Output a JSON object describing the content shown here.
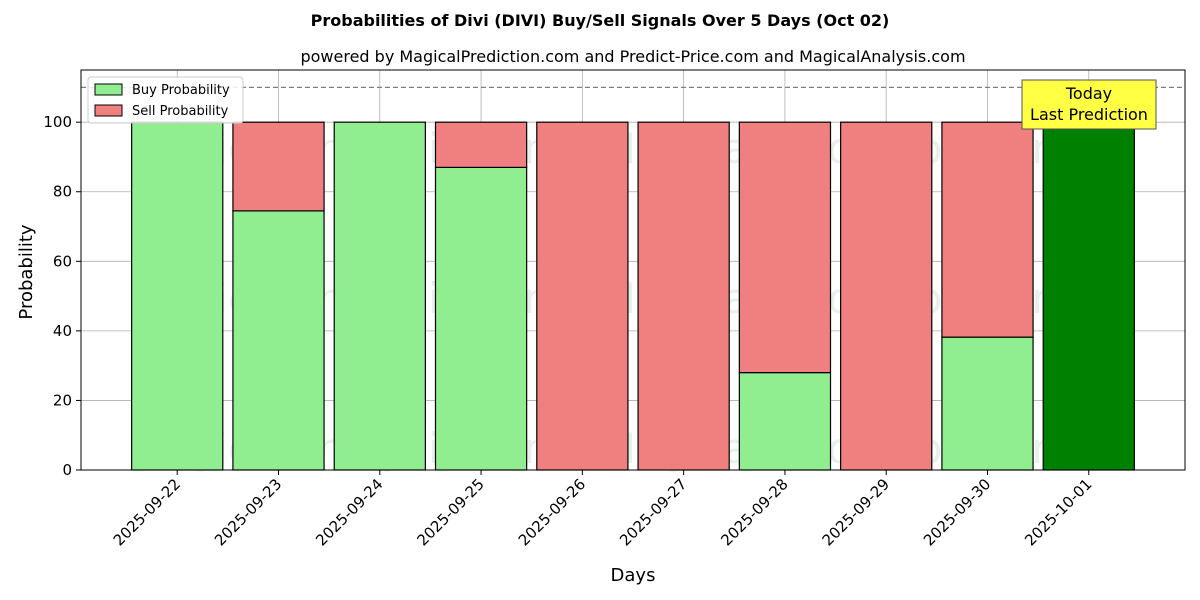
{
  "chart_data": {
    "type": "bar",
    "stacked": true,
    "title": "Probabilities of Divi (DIVI) Buy/Sell Signals Over 5 Days (Oct 02)",
    "subtitle": "powered by MagicalPrediction.com and Predict-Price.com and MagicalAnalysis.com",
    "xlabel": "Days",
    "ylabel": "Probability",
    "ylim": [
      0,
      115
    ],
    "yticks": [
      0,
      20,
      40,
      60,
      80,
      100
    ],
    "reference_line": 110,
    "grid": true,
    "legend_position": "top-left",
    "categories": [
      "2025-09-22",
      "2025-09-23",
      "2025-09-24",
      "2025-09-25",
      "2025-09-26",
      "2025-09-27",
      "2025-09-28",
      "2025-09-29",
      "2025-09-30",
      "2025-10-01"
    ],
    "series": [
      {
        "name": "Buy Probability",
        "color": "#90ee90",
        "values": [
          100,
          74.5,
          100,
          87,
          0,
          0,
          28,
          0,
          38.2,
          100
        ]
      },
      {
        "name": "Sell Probability",
        "color": "#f08080",
        "values": [
          0,
          25.5,
          0,
          13,
          100,
          100,
          72,
          100,
          61.8,
          0
        ]
      }
    ],
    "highlight": {
      "index": 9,
      "color": "#008000"
    },
    "annotation": {
      "line1": "Today",
      "line2": "Last Prediction",
      "background": "#ffff44"
    },
    "watermarks": [
      "MagicalAnalysis.com",
      "MagicalPrediction.com"
    ]
  }
}
